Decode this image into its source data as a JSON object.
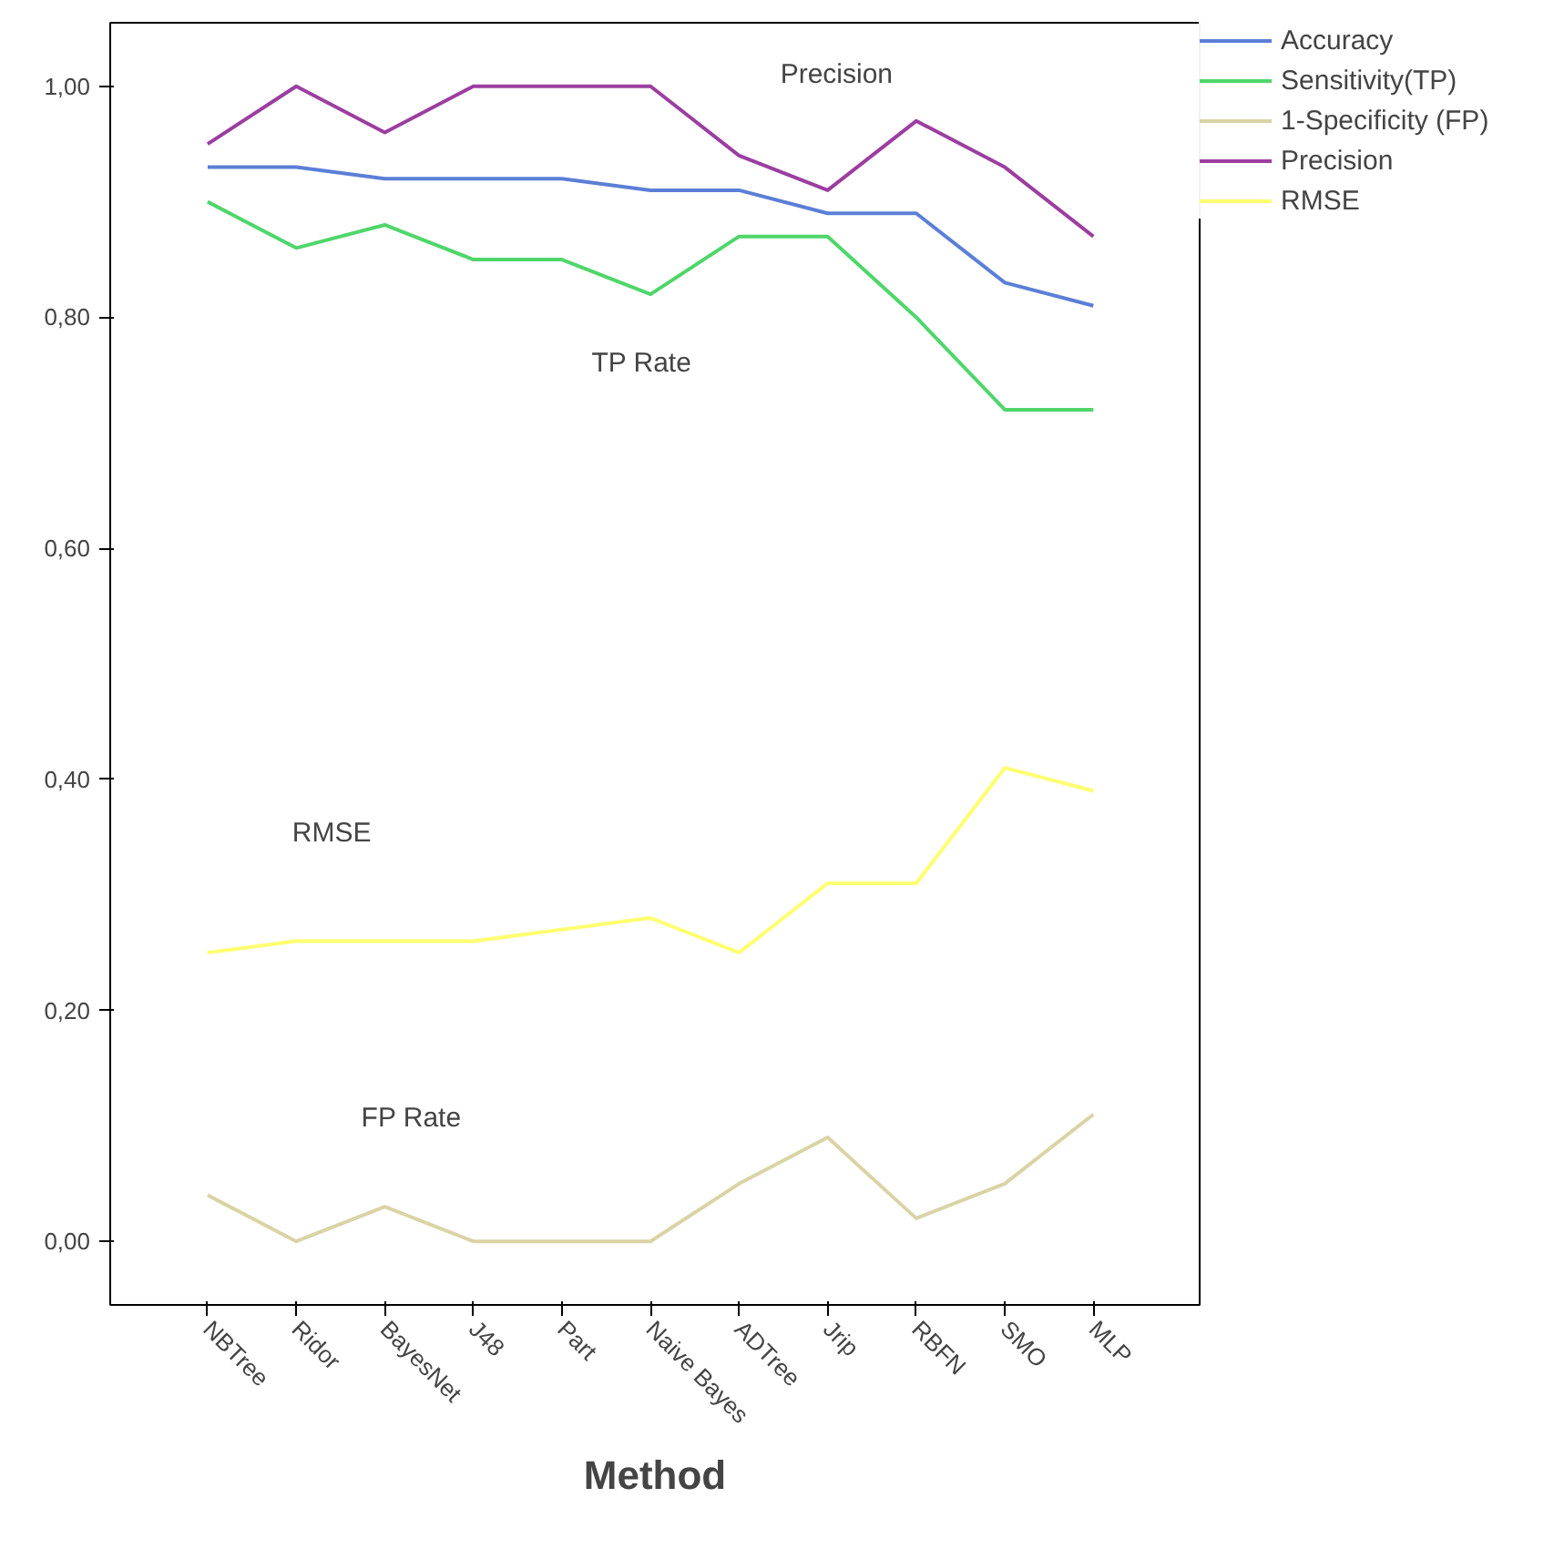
{
  "chart_data": {
    "type": "line",
    "xlabel": "Method",
    "categories": [
      "NBTree",
      "Ridor",
      "BayesNet",
      "J48",
      "Part",
      "Naive Bayes",
      "ADTree",
      "Jrip",
      "RBFN",
      "SMO",
      "MLP"
    ],
    "series": [
      {
        "name": "Accuracy",
        "color": "#5b7fd6",
        "values": [
          0.93,
          0.93,
          0.92,
          0.92,
          0.92,
          0.91,
          0.91,
          0.89,
          0.89,
          0.83,
          0.81
        ]
      },
      {
        "name": "Sensitivity(TP)",
        "color": "#4fd66a",
        "values": [
          0.9,
          0.86,
          0.88,
          0.85,
          0.85,
          0.82,
          0.87,
          0.87,
          0.8,
          0.72,
          0.72
        ]
      },
      {
        "name": "1-Specificity (FP)",
        "color": "#dad3a5",
        "values": [
          0.04,
          0.0,
          0.03,
          0.0,
          0.0,
          0.0,
          0.05,
          0.09,
          0.02,
          0.05,
          0.11
        ]
      },
      {
        "name": "Precision",
        "color": "#9b3ea0",
        "values": [
          0.95,
          1.0,
          0.96,
          1.0,
          1.0,
          1.0,
          0.94,
          0.91,
          0.97,
          0.93,
          0.87
        ]
      },
      {
        "name": "RMSE",
        "color": "#ffff70",
        "values": [
          0.25,
          0.26,
          0.26,
          0.26,
          0.27,
          0.28,
          0.25,
          0.31,
          0.31,
          0.41,
          0.39
        ]
      }
    ],
    "ylim": [
      -0.055,
      1.055
    ],
    "yticks": [
      {
        "value": 0,
        "label": "0,00"
      },
      {
        "value": 0.2,
        "label": "0,20"
      },
      {
        "value": 0.4,
        "label": "0,40"
      },
      {
        "value": 0.6,
        "label": "0,60"
      },
      {
        "value": 0.8,
        "label": "0,80"
      },
      {
        "value": 1.0,
        "label": "1,00"
      }
    ],
    "annotations": [
      "Precision",
      "TP Rate",
      "RMSE",
      "FP Rate"
    ],
    "grid": false,
    "legend": "right",
    "marker": "none",
    "line_style": "solid"
  }
}
